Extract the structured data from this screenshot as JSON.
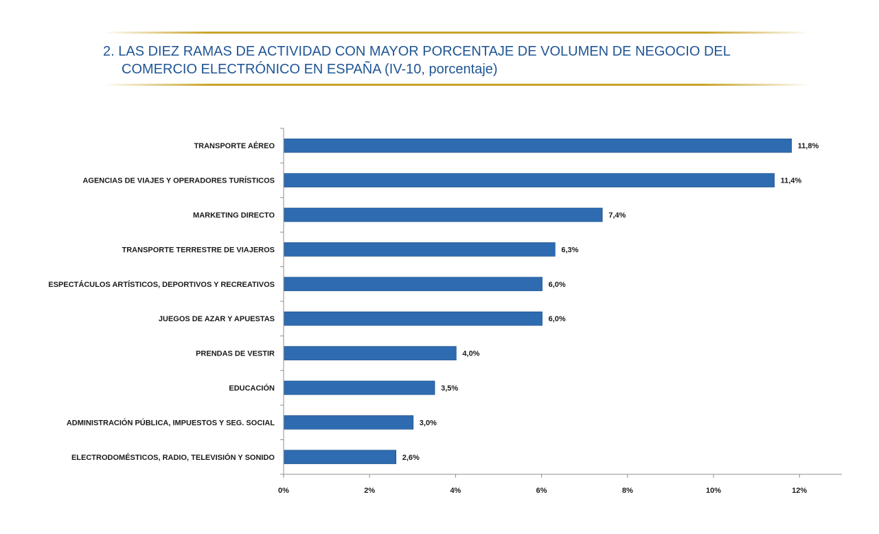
{
  "title_line1": "2. LAS DIEZ RAMAS DE ACTIVIDAD CON MAYOR PORCENTAJE DE  VOLUMEN DE NEGOCIO DEL",
  "title_line2": "COMERCIO ELECTRÓNICO EN ESPAÑA (IV-10, porcentaje)",
  "colors": {
    "bar": "#2e6bb0",
    "bar_edge": "#1f4f86",
    "title": "#1f5594",
    "rule": "#c9a227",
    "axis": "#8c8c8c"
  },
  "chart_data": {
    "type": "bar",
    "orientation": "horizontal",
    "categories": [
      "TRANSPORTE AÉREO",
      "AGENCIAS DE VIAJES Y OPERADORES  TURÍSTICOS",
      "MARKETING DIRECTO",
      "TRANSPORTE  TERRESTRE  DE VIAJEROS",
      "ESPECTÁCULOS ARTÍSTICOS, DEPORTIVOS Y RECREATIVOS",
      "JUEGOS DE AZAR Y APUESTAS",
      "PRENDAS DE VESTIR",
      "EDUCACIÓN",
      "ADMINISTRACIÓN PÚBLICA, IMPUESTOS Y SEG. SOCIAL",
      "ELECTRODOMÉSTICOS,  RADIO, TELEVISIÓN Y SONIDO"
    ],
    "values": [
      11.8,
      11.4,
      7.4,
      6.3,
      6.0,
      6.0,
      4.0,
      3.5,
      3.0,
      2.6
    ],
    "data_labels": [
      "11,8%",
      "11,4%",
      "7,4%",
      "6,3%",
      "6,0%",
      "6,0%",
      "4,0%",
      "3,5%",
      "3,0%",
      "2,6%"
    ],
    "x_ticks": [
      0,
      2,
      4,
      6,
      8,
      10,
      12
    ],
    "x_tick_labels": [
      "0%",
      "2%",
      "4%",
      "6%",
      "8%",
      "10%",
      "12%"
    ],
    "xlim": [
      0,
      13
    ],
    "grid": false,
    "legend": "none"
  }
}
